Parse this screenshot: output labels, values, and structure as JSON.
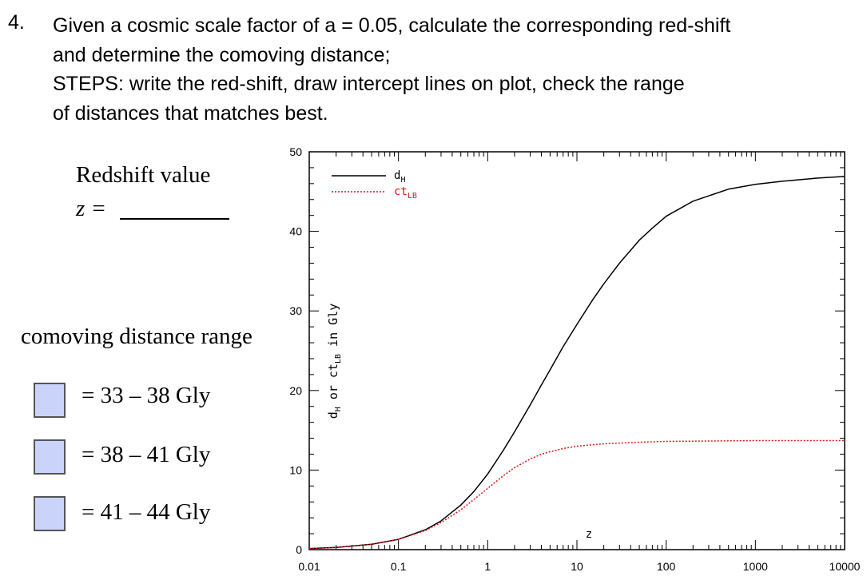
{
  "question": {
    "number": "4.",
    "lines": [
      "Given a cosmic scale factor of a = 0.05, calculate the corresponding red-shift",
      "and determine the comoving distance;",
      "STEPS: write the red-shift, draw intercept lines on plot, check the range",
      "of distances that matches best."
    ]
  },
  "redshift": {
    "title": "Redshift value",
    "z_label": "z ="
  },
  "comoving": {
    "title": "comoving distance range",
    "options": [
      "= 33 – 38 Gly",
      "= 38 – 41 Gly",
      "= 41 – 44 Gly"
    ]
  },
  "colors": {
    "checkbox_fill": "#cad4fb",
    "d_h_line": "#000000",
    "ct_lb_line": "#dd1111"
  },
  "chart_data": {
    "type": "line",
    "xscale": "log",
    "xlim": [
      0.01,
      10000
    ],
    "ylim": [
      0,
      50
    ],
    "x_ticks": [
      "0.01",
      "0.1",
      "1",
      "10",
      "100",
      "1000",
      "10000"
    ],
    "y_ticks": [
      "0",
      "10",
      "20",
      "30",
      "40",
      "50"
    ],
    "xlabel": "z",
    "ylabel": {
      "p1": "d",
      "s1": "H",
      "p2": " or ct",
      "s2": "LB",
      "p3": " in Gly"
    },
    "legend": {
      "position": "top-left",
      "entries": [
        {
          "main": "d",
          "sub": "H",
          "style": "solid",
          "color": "#000000"
        },
        {
          "main": "ct",
          "sub": "LB",
          "style": "dotted",
          "color": "#dd1111"
        }
      ]
    },
    "series": [
      {
        "key": "d_H",
        "style": "solid",
        "x": [
          0.01,
          0.02,
          0.05,
          0.1,
          0.2,
          0.3,
          0.5,
          0.7,
          1,
          1.5,
          2,
          3,
          4,
          5,
          7,
          10,
          15,
          20,
          30,
          50,
          70,
          100,
          200,
          500,
          1000,
          2000,
          5000,
          10000
        ],
        "y": [
          0.14,
          0.27,
          0.67,
          1.3,
          2.5,
          3.6,
          5.6,
          7.3,
          9.5,
          12.5,
          14.8,
          18.2,
          20.7,
          22.6,
          25.5,
          28.3,
          31.4,
          33.4,
          36.0,
          38.9,
          40.4,
          41.9,
          43.8,
          45.3,
          45.9,
          46.3,
          46.7,
          46.9
        ]
      },
      {
        "key": "ct_LB",
        "style": "dotted",
        "x": [
          0.01,
          0.02,
          0.05,
          0.1,
          0.2,
          0.3,
          0.5,
          0.7,
          1,
          1.5,
          2,
          3,
          4,
          5,
          7,
          10,
          20,
          50,
          100,
          1000,
          10000
        ],
        "y": [
          0.14,
          0.27,
          0.66,
          1.3,
          2.4,
          3.4,
          5.0,
          6.3,
          7.7,
          9.3,
          10.3,
          11.4,
          12.0,
          12.3,
          12.7,
          13.0,
          13.3,
          13.5,
          13.6,
          13.7,
          13.7
        ]
      }
    ]
  }
}
